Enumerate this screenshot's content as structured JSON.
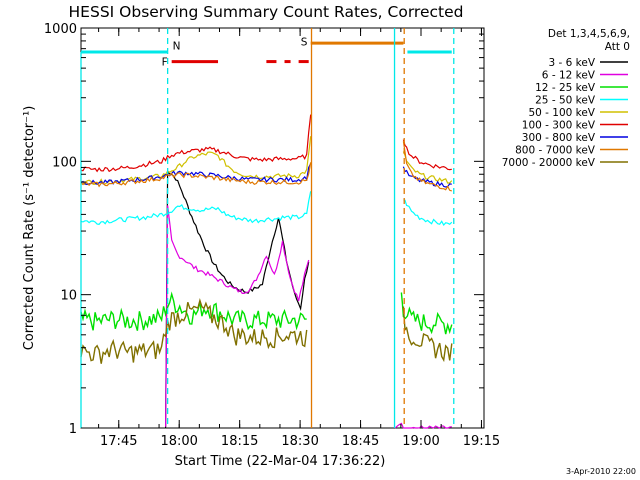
{
  "chart_data": {
    "type": "line",
    "title": "HESSI Observing Summary Count Rates, Corrected",
    "xlabel": "Start Time (22-Mar-04 17:36:22)",
    "ylabel": "Corrected Count Rate (s⁻¹ detector⁻¹)",
    "ylog": true,
    "ylim": [
      1,
      1000
    ],
    "xlim": [
      "17:36",
      "19:16"
    ],
    "x_ticks": [
      "17:45",
      "18:00",
      "18:15",
      "18:30",
      "18:45",
      "19:00",
      "19:15"
    ],
    "y_ticks": [
      "1",
      "10",
      "100",
      "1000"
    ],
    "legend_header": [
      "Det 1,3,4,5,6,9,",
      "Att 0"
    ],
    "stamp": "3-Apr-2010 22:00",
    "flag_labels": {
      "N": "N",
      "F": "F",
      "S": "S"
    },
    "x_unit": "minutes after 17:36",
    "series": [
      {
        "name": "3 - 6 keV",
        "color": "#000000",
        "x": [
          21,
          21.5,
          22.5,
          23.5,
          25,
          27,
          29,
          31,
          33,
          35,
          37,
          39,
          41,
          43,
          45,
          47,
          49,
          51,
          53,
          54.5,
          55.5,
          56.5
        ],
        "y": [
          1,
          85,
          80,
          75,
          60,
          42,
          30,
          22,
          17,
          14,
          12,
          11,
          10.5,
          11,
          12,
          22,
          38,
          18,
          10,
          8,
          13,
          18
        ]
      },
      {
        "name": "6 - 12 keV",
        "color": "#e000e0",
        "x": [
          21,
          21.5,
          22.5,
          24,
          26,
          28,
          30,
          32,
          34,
          36,
          38,
          40,
          42,
          44,
          46,
          48,
          50,
          52,
          54,
          55.5,
          56.5,
          78,
          79,
          80,
          82,
          84,
          86,
          88,
          90,
          92
        ],
        "y": [
          1,
          45,
          25,
          20,
          18,
          16,
          15,
          14,
          13,
          12,
          11,
          10.5,
          11,
          14,
          20,
          14,
          25,
          13,
          9,
          14,
          18,
          1,
          1.1,
          1,
          1,
          1,
          1,
          1,
          1,
          1
        ]
      },
      {
        "name": "12 - 25 keV",
        "color": "#00e000",
        "x": [
          0,
          4,
          8,
          12,
          16,
          20,
          21,
          22,
          24,
          26,
          28,
          30,
          32,
          34,
          36,
          38,
          40,
          42,
          44,
          46,
          48,
          50,
          52,
          54,
          56,
          79.5,
          80,
          82,
          84,
          86,
          88,
          90,
          92
        ],
        "y": [
          6.5,
          6.3,
          6.6,
          6.4,
          6.5,
          6.7,
          8,
          9,
          8.5,
          7.5,
          7,
          8,
          8,
          7.5,
          7,
          6.5,
          6.5,
          6.5,
          6.5,
          6.5,
          6.5,
          6.5,
          6.5,
          6.5,
          6.5,
          10,
          8,
          6.5,
          6.3,
          6.2,
          6.2,
          6,
          6
        ]
      },
      {
        "name": "25 - 50 keV",
        "color": "#00ffff",
        "x": [
          0,
          4,
          8,
          12,
          16,
          20,
          22,
          24,
          26,
          28,
          30,
          32,
          34,
          36,
          38,
          40,
          42,
          44,
          46,
          48,
          50,
          52,
          54,
          56,
          57,
          80,
          80.8,
          82,
          84,
          86,
          88,
          90,
          92
        ],
        "y": [
          36,
          35,
          36,
          37,
          38,
          40,
          42,
          46,
          45,
          44,
          43,
          44,
          44,
          40,
          38,
          37,
          36,
          36,
          37,
          37,
          38,
          38,
          38,
          40,
          60,
          52,
          48,
          42,
          38,
          36,
          35,
          34,
          34
        ]
      },
      {
        "name": "50 - 100 keV",
        "color": "#d0c000",
        "x": [
          0,
          4,
          8,
          12,
          16,
          20,
          22,
          24,
          26,
          28,
          30,
          32,
          34,
          36,
          38,
          40,
          42,
          44,
          46,
          48,
          50,
          52,
          54,
          56,
          57,
          80,
          80.8,
          82,
          84,
          86,
          88,
          90,
          92
        ],
        "y": [
          70,
          70,
          71,
          73,
          75,
          78,
          84,
          90,
          100,
          108,
          112,
          115,
          110,
          95,
          85,
          80,
          78,
          77,
          77,
          77,
          78,
          78,
          78,
          85,
          150,
          120,
          100,
          88,
          80,
          76,
          74,
          72,
          70
        ]
      },
      {
        "name": "100 - 300 keV",
        "color": "#e00000",
        "x": [
          0,
          4,
          8,
          12,
          16,
          20,
          22,
          24,
          26,
          28,
          30,
          32,
          34,
          36,
          38,
          40,
          42,
          44,
          46,
          48,
          50,
          52,
          54,
          56,
          57,
          80,
          80.8,
          82,
          84,
          86,
          88,
          90,
          92
        ],
        "y": [
          88,
          87,
          88,
          90,
          95,
          100,
          110,
          115,
          118,
          120,
          122,
          123,
          120,
          115,
          110,
          106,
          104,
          103,
          103,
          104,
          104,
          105,
          105,
          110,
          230,
          150,
          125,
          110,
          100,
          95,
          92,
          90,
          88
        ]
      },
      {
        "name": "300 - 800 keV",
        "color": "#0000e0",
        "x": [
          0,
          4,
          8,
          12,
          16,
          20,
          22,
          24,
          26,
          28,
          30,
          32,
          34,
          36,
          38,
          40,
          42,
          44,
          46,
          48,
          50,
          52,
          54,
          56,
          57,
          80,
          80.8,
          82,
          84,
          86,
          88,
          90,
          92
        ],
        "y": [
          70,
          69,
          70,
          72,
          74,
          77,
          80,
          82,
          82,
          81,
          80,
          79,
          78,
          76,
          75,
          74,
          73,
          73,
          73,
          73,
          73,
          73,
          73,
          76,
          100,
          90,
          82,
          76,
          72,
          70,
          68,
          67,
          66
        ]
      },
      {
        "name": "800 - 7000 keV",
        "color": "#e07800",
        "x": [
          0,
          4,
          8,
          12,
          16,
          20,
          22,
          24,
          26,
          28,
          30,
          32,
          34,
          36,
          38,
          40,
          42,
          44,
          46,
          48,
          50,
          52,
          54,
          56,
          57,
          80,
          80.8,
          82,
          84,
          86,
          88,
          90,
          92
        ],
        "y": [
          68,
          67,
          68,
          70,
          72,
          75,
          78,
          79,
          79,
          78,
          77,
          76,
          75,
          73,
          72,
          71,
          70,
          70,
          70,
          70,
          70,
          70,
          70,
          72,
          95,
          140,
          95,
          80,
          72,
          68,
          66,
          64,
          62
        ]
      },
      {
        "name": "7000 - 20000 keV",
        "color": "#807000",
        "x": [
          0,
          4,
          8,
          12,
          16,
          20,
          21,
          22,
          24,
          26,
          28,
          30,
          32,
          34,
          36,
          38,
          40,
          42,
          44,
          46,
          48,
          50,
          52,
          54,
          56,
          80,
          80.8,
          82,
          84,
          86,
          88,
          90,
          92
        ],
        "y": [
          3.8,
          3.6,
          3.9,
          3.7,
          3.8,
          3.9,
          5.5,
          6.5,
          7,
          7.5,
          7.5,
          8,
          7,
          6.5,
          6,
          5,
          5,
          4.8,
          4.8,
          4.9,
          4.8,
          5,
          5,
          5,
          4.8,
          7,
          5.5,
          5,
          4.6,
          4.2,
          4,
          3.8,
          3.7
        ]
      }
    ],
    "flags": {
      "night_bars": [
        {
          "x0": 0,
          "x1": 21.5,
          "y": 660
        },
        {
          "x0": 81,
          "x1": 92,
          "y": 660
        }
      ],
      "flare_bars": [
        {
          "x0": 22.5,
          "x1": 34,
          "y": 560
        },
        {
          "x0": 46,
          "x1": 48.5,
          "y": 560
        },
        {
          "x0": 50.5,
          "x1": 52,
          "y": 560
        },
        {
          "x0": 54,
          "x1": 56.5,
          "y": 560
        }
      ],
      "saa_bar": {
        "x0": 57,
        "x1": 80,
        "y": 770
      }
    },
    "vertical_lines": [
      {
        "x": 21.5,
        "color": "#00e8e8",
        "style": "dashed"
      },
      {
        "x": 57.2,
        "color": "#e07800",
        "style": "solid"
      },
      {
        "x": 77.8,
        "color": "#00e8e8",
        "style": "solid"
      },
      {
        "x": 80.2,
        "color": "#e07800",
        "style": "dashed"
      },
      {
        "x": 92.5,
        "color": "#00e8e8",
        "style": "dashed"
      }
    ],
    "gaps": [
      {
        "x0": 57,
        "x1": 79.5
      }
    ]
  }
}
